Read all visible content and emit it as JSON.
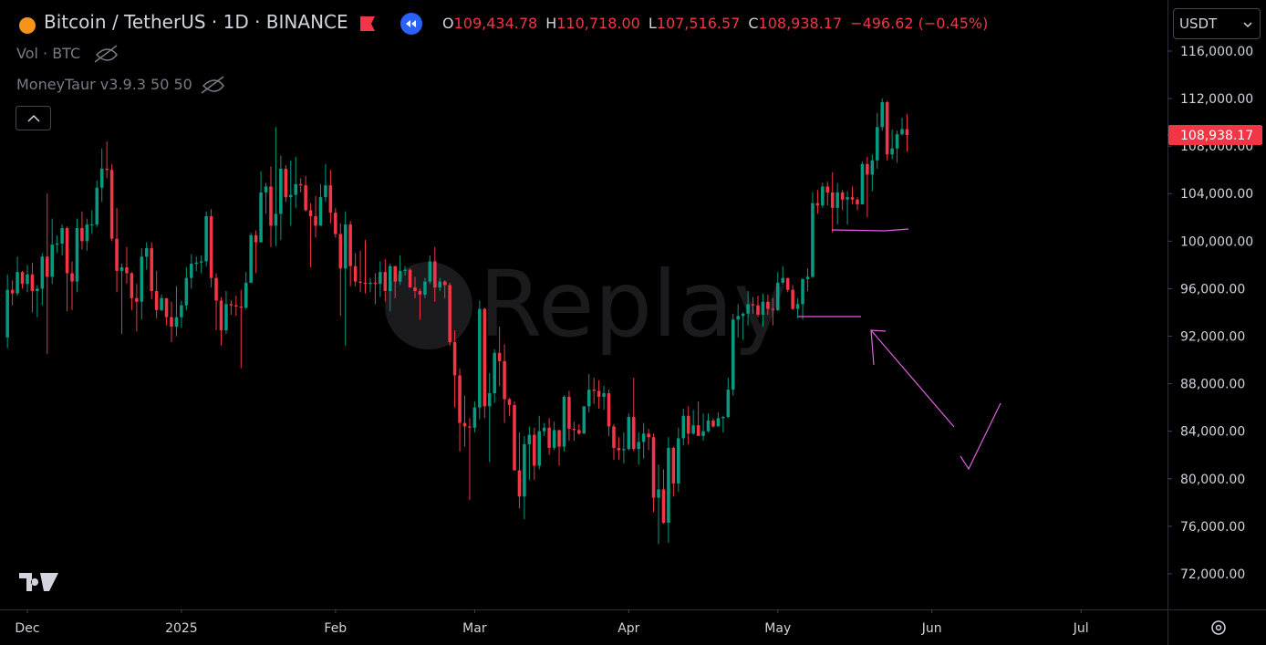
{
  "chart_data": {
    "type": "candlestick",
    "title": "Bitcoin / TetherUS · 1D · BINANCE",
    "header": {
      "open_label": "O",
      "open": "109,434.78",
      "high_label": "H",
      "high": "110,718.00",
      "low_label": "L",
      "low": "107,516.57",
      "close_label": "C",
      "close": "108,938.17",
      "change": "−496.62 (−0.45%)"
    },
    "indicators": [
      "Vol · BTC",
      "MoneyTaur v3.9.3 50 50"
    ],
    "currency": "USDT",
    "watermark": "Replay",
    "up_color": "#089981",
    "down_color": "#f23645",
    "ylim": [
      69000,
      120300
    ],
    "yticks": [
      {
        "value": 72000,
        "label": "72,000.00"
      },
      {
        "value": 76000,
        "label": "76,000.00"
      },
      {
        "value": 80000,
        "label": "80,000.00"
      },
      {
        "value": 84000,
        "label": "84,000.00"
      },
      {
        "value": 88000,
        "label": "88,000.00"
      },
      {
        "value": 92000,
        "label": "92,000.00"
      },
      {
        "value": 96000,
        "label": "96,000.00"
      },
      {
        "value": 100000,
        "label": "100,000.00"
      },
      {
        "value": 104000,
        "label": "104,000.00"
      },
      {
        "value": 108000,
        "label": "108,000.00"
      },
      {
        "value": 112000,
        "label": "112,000.00"
      },
      {
        "value": 116000,
        "label": "116,000.00"
      }
    ],
    "xlim": [
      -1.5,
      233.4
    ],
    "xticks": [
      {
        "value": 4,
        "label": "Dec"
      },
      {
        "value": 35,
        "label": "2025"
      },
      {
        "value": 66,
        "label": "Feb"
      },
      {
        "value": 94,
        "label": "Mar"
      },
      {
        "value": 125,
        "label": "Apr"
      },
      {
        "value": 155,
        "label": "May"
      },
      {
        "value": 186,
        "label": "Jun"
      },
      {
        "value": 216,
        "label": "Jul"
      }
    ],
    "last_price": {
      "value": 108938.17,
      "label": "108,938.17"
    },
    "ohlc": [
      [
        91900,
        97200,
        91000,
        95900
      ],
      [
        95900,
        96700,
        94600,
        95600
      ],
      [
        95600,
        98700,
        95400,
        97400
      ],
      [
        97400,
        97500,
        96000,
        96400
      ],
      [
        96400,
        98000,
        95700,
        97200
      ],
      [
        97200,
        98200,
        94000,
        95800
      ],
      [
        95800,
        96300,
        93600,
        96000
      ],
      [
        96000,
        99000,
        94600,
        98700
      ],
      [
        98700,
        104000,
        90500,
        97000
      ],
      [
        97000,
        101900,
        96400,
        99700
      ],
      [
        99700,
        100500,
        99000,
        99800
      ],
      [
        99800,
        101400,
        98800,
        101100
      ],
      [
        101100,
        101200,
        94100,
        97300
      ],
      [
        97300,
        98300,
        94200,
        96600
      ],
      [
        96600,
        101900,
        95700,
        101100
      ],
      [
        101100,
        102500,
        99300,
        100000
      ],
      [
        100000,
        101900,
        99200,
        101400
      ],
      [
        101400,
        102600,
        100600,
        101400
      ],
      [
        101400,
        105100,
        101200,
        104500
      ],
      [
        104500,
        107800,
        103300,
        106100
      ],
      [
        106100,
        108400,
        105300,
        106000
      ],
      [
        106000,
        106500,
        100000,
        100200
      ],
      [
        100200,
        102800,
        95700,
        97500
      ],
      [
        97500,
        98100,
        92200,
        97800
      ],
      [
        97800,
        99500,
        96400,
        97300
      ],
      [
        97300,
        97400,
        94200,
        95200
      ],
      [
        95200,
        96400,
        92400,
        94900
      ],
      [
        94900,
        99400,
        93400,
        98700
      ],
      [
        98700,
        99900,
        97600,
        99400
      ],
      [
        99400,
        99900,
        95100,
        95800
      ],
      [
        95800,
        97500,
        93500,
        94200
      ],
      [
        94200,
        95500,
        94100,
        95200
      ],
      [
        95200,
        95200,
        92900,
        93600
      ],
      [
        93600,
        94900,
        91500,
        92800
      ],
      [
        92800,
        96200,
        92000,
        93600
      ],
      [
        93600,
        95000,
        92700,
        94600
      ],
      [
        94600,
        97800,
        94200,
        96900
      ],
      [
        96900,
        98900,
        96000,
        98100
      ],
      [
        98100,
        98700,
        97500,
        98200
      ],
      [
        98200,
        98800,
        97300,
        98300
      ],
      [
        98300,
        102500,
        97900,
        102100
      ],
      [
        102100,
        102700,
        96100,
        96900
      ],
      [
        96900,
        97300,
        92500,
        95000
      ],
      [
        95000,
        95300,
        91200,
        92500
      ],
      [
        92500,
        95800,
        92200,
        94700
      ],
      [
        94700,
        95000,
        93800,
        94600
      ],
      [
        94600,
        95400,
        93700,
        94500
      ],
      [
        94500,
        95900,
        89300,
        94400
      ],
      [
        94400,
        97400,
        94300,
        96500
      ],
      [
        96500,
        100700,
        96500,
        100500
      ],
      [
        100500,
        100900,
        97300,
        99900
      ],
      [
        99900,
        105900,
        99900,
        104100
      ],
      [
        104100,
        104900,
        102300,
        104600
      ],
      [
        104600,
        106300,
        99500,
        101300
      ],
      [
        101300,
        109600,
        99600,
        102300
      ],
      [
        102300,
        107200,
        100100,
        106100
      ],
      [
        106100,
        106400,
        103300,
        103700
      ],
      [
        103700,
        106800,
        101300,
        103900
      ],
      [
        103900,
        107100,
        102800,
        104800
      ],
      [
        104800,
        105300,
        104100,
        104700
      ],
      [
        104700,
        105500,
        102500,
        102600
      ],
      [
        102600,
        103200,
        97800,
        102100
      ],
      [
        102100,
        103800,
        100300,
        101300
      ],
      [
        101300,
        104800,
        101300,
        103700
      ],
      [
        103700,
        106500,
        103300,
        104700
      ],
      [
        104700,
        106000,
        101500,
        102400
      ],
      [
        102400,
        102800,
        100300,
        100600
      ],
      [
        100600,
        101500,
        93700,
        97700
      ],
      [
        97700,
        102500,
        91200,
        101400
      ],
      [
        101400,
        101700,
        96200,
        97900
      ],
      [
        97900,
        99000,
        96200,
        96600
      ],
      [
        96600,
        99200,
        95700,
        96500
      ],
      [
        96500,
        100100,
        95600,
        96400
      ],
      [
        96400,
        96900,
        95700,
        96500
      ],
      [
        96500,
        97300,
        94700,
        96400
      ],
      [
        96400,
        98300,
        95300,
        97400
      ],
      [
        97400,
        98500,
        94900,
        95800
      ],
      [
        95800,
        98100,
        94100,
        97900
      ],
      [
        97900,
        97900,
        95200,
        96600
      ],
      [
        96600,
        98800,
        96300,
        97500
      ],
      [
        97500,
        97900,
        97100,
        97600
      ],
      [
        97600,
        97700,
        96100,
        96100
      ],
      [
        96100,
        97000,
        95200,
        95800
      ],
      [
        95800,
        96000,
        93400,
        95500
      ],
      [
        95500,
        96900,
        95200,
        96600
      ],
      [
        96600,
        98800,
        96400,
        98300
      ],
      [
        98300,
        99500,
        94900,
        96100
      ],
      [
        96100,
        96900,
        95800,
        96600
      ],
      [
        96600,
        96700,
        95200,
        96300
      ],
      [
        96300,
        96500,
        91200,
        91500
      ],
      [
        91500,
        92500,
        86000,
        88700
      ],
      [
        88700,
        89300,
        82300,
        84700
      ],
      [
        84700,
        87000,
        82700,
        84400
      ],
      [
        84400,
        85100,
        78200,
        84300
      ],
      [
        84300,
        86500,
        83900,
        86000
      ],
      [
        86000,
        95000,
        85000,
        94300
      ],
      [
        94300,
        94400,
        85100,
        86100
      ],
      [
        86100,
        88900,
        81400,
        87200
      ],
      [
        87200,
        90900,
        86400,
        90600
      ],
      [
        90600,
        92800,
        87800,
        89900
      ],
      [
        89900,
        91300,
        84700,
        86700
      ],
      [
        86700,
        86800,
        85300,
        86200
      ],
      [
        86200,
        86500,
        80900,
        80700
      ],
      [
        80700,
        83900,
        77500,
        78500
      ],
      [
        78500,
        83600,
        76600,
        82900
      ],
      [
        82900,
        84400,
        79900,
        83700
      ],
      [
        83700,
        84300,
        79900,
        81100
      ],
      [
        81100,
        85300,
        80800,
        84000
      ],
      [
        84000,
        84700,
        83600,
        84300
      ],
      [
        84300,
        85100,
        82000,
        82600
      ],
      [
        82600,
        84800,
        82400,
        84100
      ],
      [
        84100,
        84100,
        81100,
        82700
      ],
      [
        82700,
        87000,
        82300,
        86900
      ],
      [
        86900,
        87400,
        83200,
        84200
      ],
      [
        84200,
        84800,
        83200,
        84100
      ],
      [
        84100,
        84600,
        83700,
        83800
      ],
      [
        83800,
        86100,
        83800,
        86100
      ],
      [
        86100,
        88800,
        85600,
        87500
      ],
      [
        87500,
        88500,
        86300,
        87400
      ],
      [
        87400,
        88300,
        85900,
        86900
      ],
      [
        86900,
        87800,
        85800,
        87200
      ],
      [
        87200,
        87500,
        83600,
        84400
      ],
      [
        84400,
        84600,
        81600,
        82600
      ],
      [
        82600,
        83500,
        81600,
        82400
      ],
      [
        82400,
        83900,
        81300,
        82500
      ],
      [
        82500,
        85500,
        82400,
        85200
      ],
      [
        85200,
        88500,
        82300,
        82500
      ],
      [
        82500,
        83900,
        81200,
        83100
      ],
      [
        83100,
        84700,
        81700,
        83800
      ],
      [
        83800,
        84200,
        82400,
        83500
      ],
      [
        83500,
        83800,
        77200,
        78400
      ],
      [
        78400,
        81200,
        74500,
        79100
      ],
      [
        79100,
        80800,
        76200,
        76300
      ],
      [
        76300,
        83500,
        74600,
        82600
      ],
      [
        82600,
        82700,
        78500,
        79600
      ],
      [
        79600,
        84300,
        78900,
        83400
      ],
      [
        83400,
        85900,
        82800,
        85300
      ],
      [
        85300,
        86100,
        82900,
        83800
      ],
      [
        83800,
        85800,
        83700,
        84500
      ],
      [
        84500,
        86500,
        83600,
        83600
      ],
      [
        83600,
        85500,
        83200,
        84000
      ],
      [
        84000,
        85500,
        83900,
        84900
      ],
      [
        84900,
        85100,
        84300,
        84400
      ],
      [
        84400,
        85600,
        84400,
        85100
      ],
      [
        85100,
        85300,
        83900,
        85200
      ],
      [
        85200,
        88500,
        85100,
        87500
      ],
      [
        87500,
        93900,
        87000,
        93400
      ],
      [
        93400,
        94700,
        91900,
        93700
      ],
      [
        93700,
        94000,
        91700,
        93900
      ],
      [
        93900,
        95800,
        92900,
        94700
      ],
      [
        94700,
        95300,
        93900,
        94600
      ],
      [
        94600,
        95400,
        93600,
        93800
      ],
      [
        93800,
        95600,
        92800,
        94900
      ],
      [
        94900,
        95500,
        93800,
        94300
      ],
      [
        94300,
        95200,
        92900,
        94200
      ],
      [
        94200,
        97400,
        94100,
        96500
      ],
      [
        96500,
        97900,
        96300,
        96900
      ],
      [
        96900,
        96900,
        95700,
        95900
      ],
      [
        95900,
        96300,
        94200,
        94300
      ],
      [
        94300,
        95200,
        93500,
        94700
      ],
      [
        94700,
        96900,
        93400,
        96800
      ],
      [
        96800,
        97700,
        95800,
        97000
      ],
      [
        97000,
        104100,
        96900,
        103200
      ],
      [
        103200,
        104300,
        102300,
        103000
      ],
      [
        103000,
        104900,
        102800,
        104600
      ],
      [
        104600,
        105000,
        103000,
        104100
      ],
      [
        104100,
        105800,
        100700,
        102800
      ],
      [
        102800,
        104900,
        101400,
        104100
      ],
      [
        104100,
        104300,
        102600,
        103500
      ],
      [
        103500,
        104200,
        101400,
        103700
      ],
      [
        103700,
        104600,
        103100,
        103500
      ],
      [
        103500,
        103700,
        102600,
        103100
      ],
      [
        103100,
        106700,
        103100,
        106500
      ],
      [
        106500,
        107100,
        102000,
        105600
      ],
      [
        105600,
        107300,
        104200,
        106800
      ],
      [
        106800,
        110800,
        106100,
        109600
      ],
      [
        109600,
        112000,
        109300,
        111700
      ],
      [
        111700,
        111800,
        106800,
        107300
      ],
      [
        107300,
        109400,
        106900,
        107800
      ],
      [
        107800,
        109300,
        106600,
        109000
      ],
      [
        109000,
        110400,
        108900,
        109434.78
      ],
      [
        109434.78,
        110718,
        107516.57,
        108938.17
      ]
    ]
  }
}
